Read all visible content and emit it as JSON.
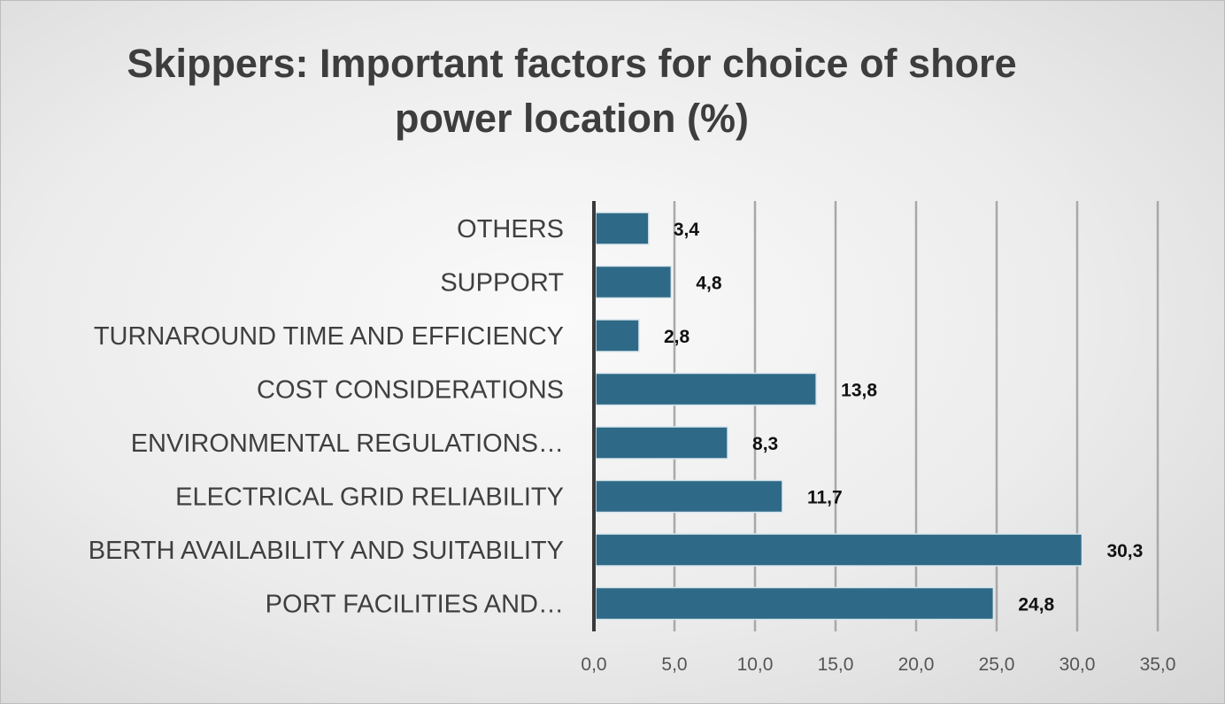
{
  "chart_data": {
    "type": "bar",
    "orientation": "horizontal",
    "title": "Skippers: Important factors for choice of shore power location (%)",
    "categories": [
      "OTHERS",
      "SUPPORT",
      "TURNAROUND TIME AND EFFICIENCY",
      "COST CONSIDERATIONS",
      "ENVIRONMENTAL REGULATIONS…",
      "ELECTRICAL GRID RELIABILITY",
      "BERTH AVAILABILITY AND SUITABILITY",
      "PORT FACILITIES AND…"
    ],
    "values": [
      3.4,
      4.8,
      2.8,
      13.8,
      8.3,
      11.7,
      30.3,
      24.8
    ],
    "value_labels": [
      "3,4",
      "4,8",
      "2,8",
      "13,8",
      "8,3",
      "11,7",
      "30,3",
      "24,8"
    ],
    "xlim": [
      0,
      35
    ],
    "x_ticks": [
      "0,0",
      "5,0",
      "10,0",
      "15,0",
      "20,0",
      "25,0",
      "30,0",
      "35,0"
    ],
    "xlabel": "",
    "ylabel": "",
    "grid": "vertical",
    "legend": "none",
    "bar_color": "#2e6a87"
  }
}
